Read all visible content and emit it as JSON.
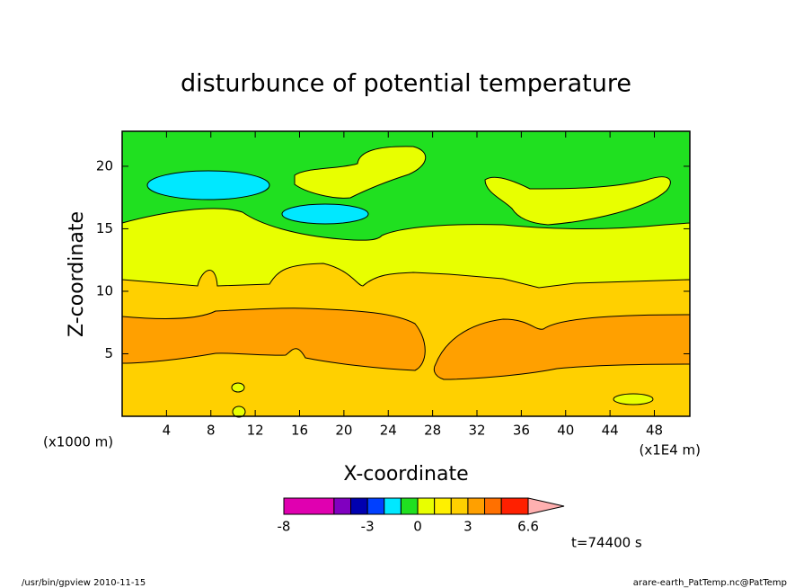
{
  "chart_data": {
    "type": "contour",
    "title": "disturbunce of potential temperature",
    "xlabel": "X-coordinate",
    "ylabel": "Z-coordinate",
    "x_unit": "(x1E4 m)",
    "y_unit": "(x1000 m)",
    "xlim": [
      0,
      51.2
    ],
    "ylim": [
      0,
      22.8
    ],
    "xticks": [
      4,
      8,
      12,
      16,
      20,
      24,
      28,
      32,
      36,
      40,
      44,
      48
    ],
    "yticks": [
      5,
      10,
      15,
      20
    ],
    "levels": [
      -8,
      -5,
      -4,
      -3,
      -2,
      -1,
      0,
      1,
      2,
      3,
      4,
      5,
      6.6
    ],
    "colors": [
      "#e000b0",
      "#8000c0",
      "#0000b0",
      "#0040ff",
      "#00e8ff",
      "#20e020",
      "#e8ff00",
      "#fff000",
      "#ffd000",
      "#ffa000",
      "#ff7000",
      "#ff2000"
    ],
    "extend_color": "#ffb0b0",
    "colorbar_ticks": [
      -8,
      -3,
      0,
      3,
      6.6
    ],
    "time_label": "t=74400 s",
    "footer_left": "/usr/bin/gpview   2010-11-15",
    "footer_right": "arare-earth_PatTemp.nc@PatTemp"
  }
}
